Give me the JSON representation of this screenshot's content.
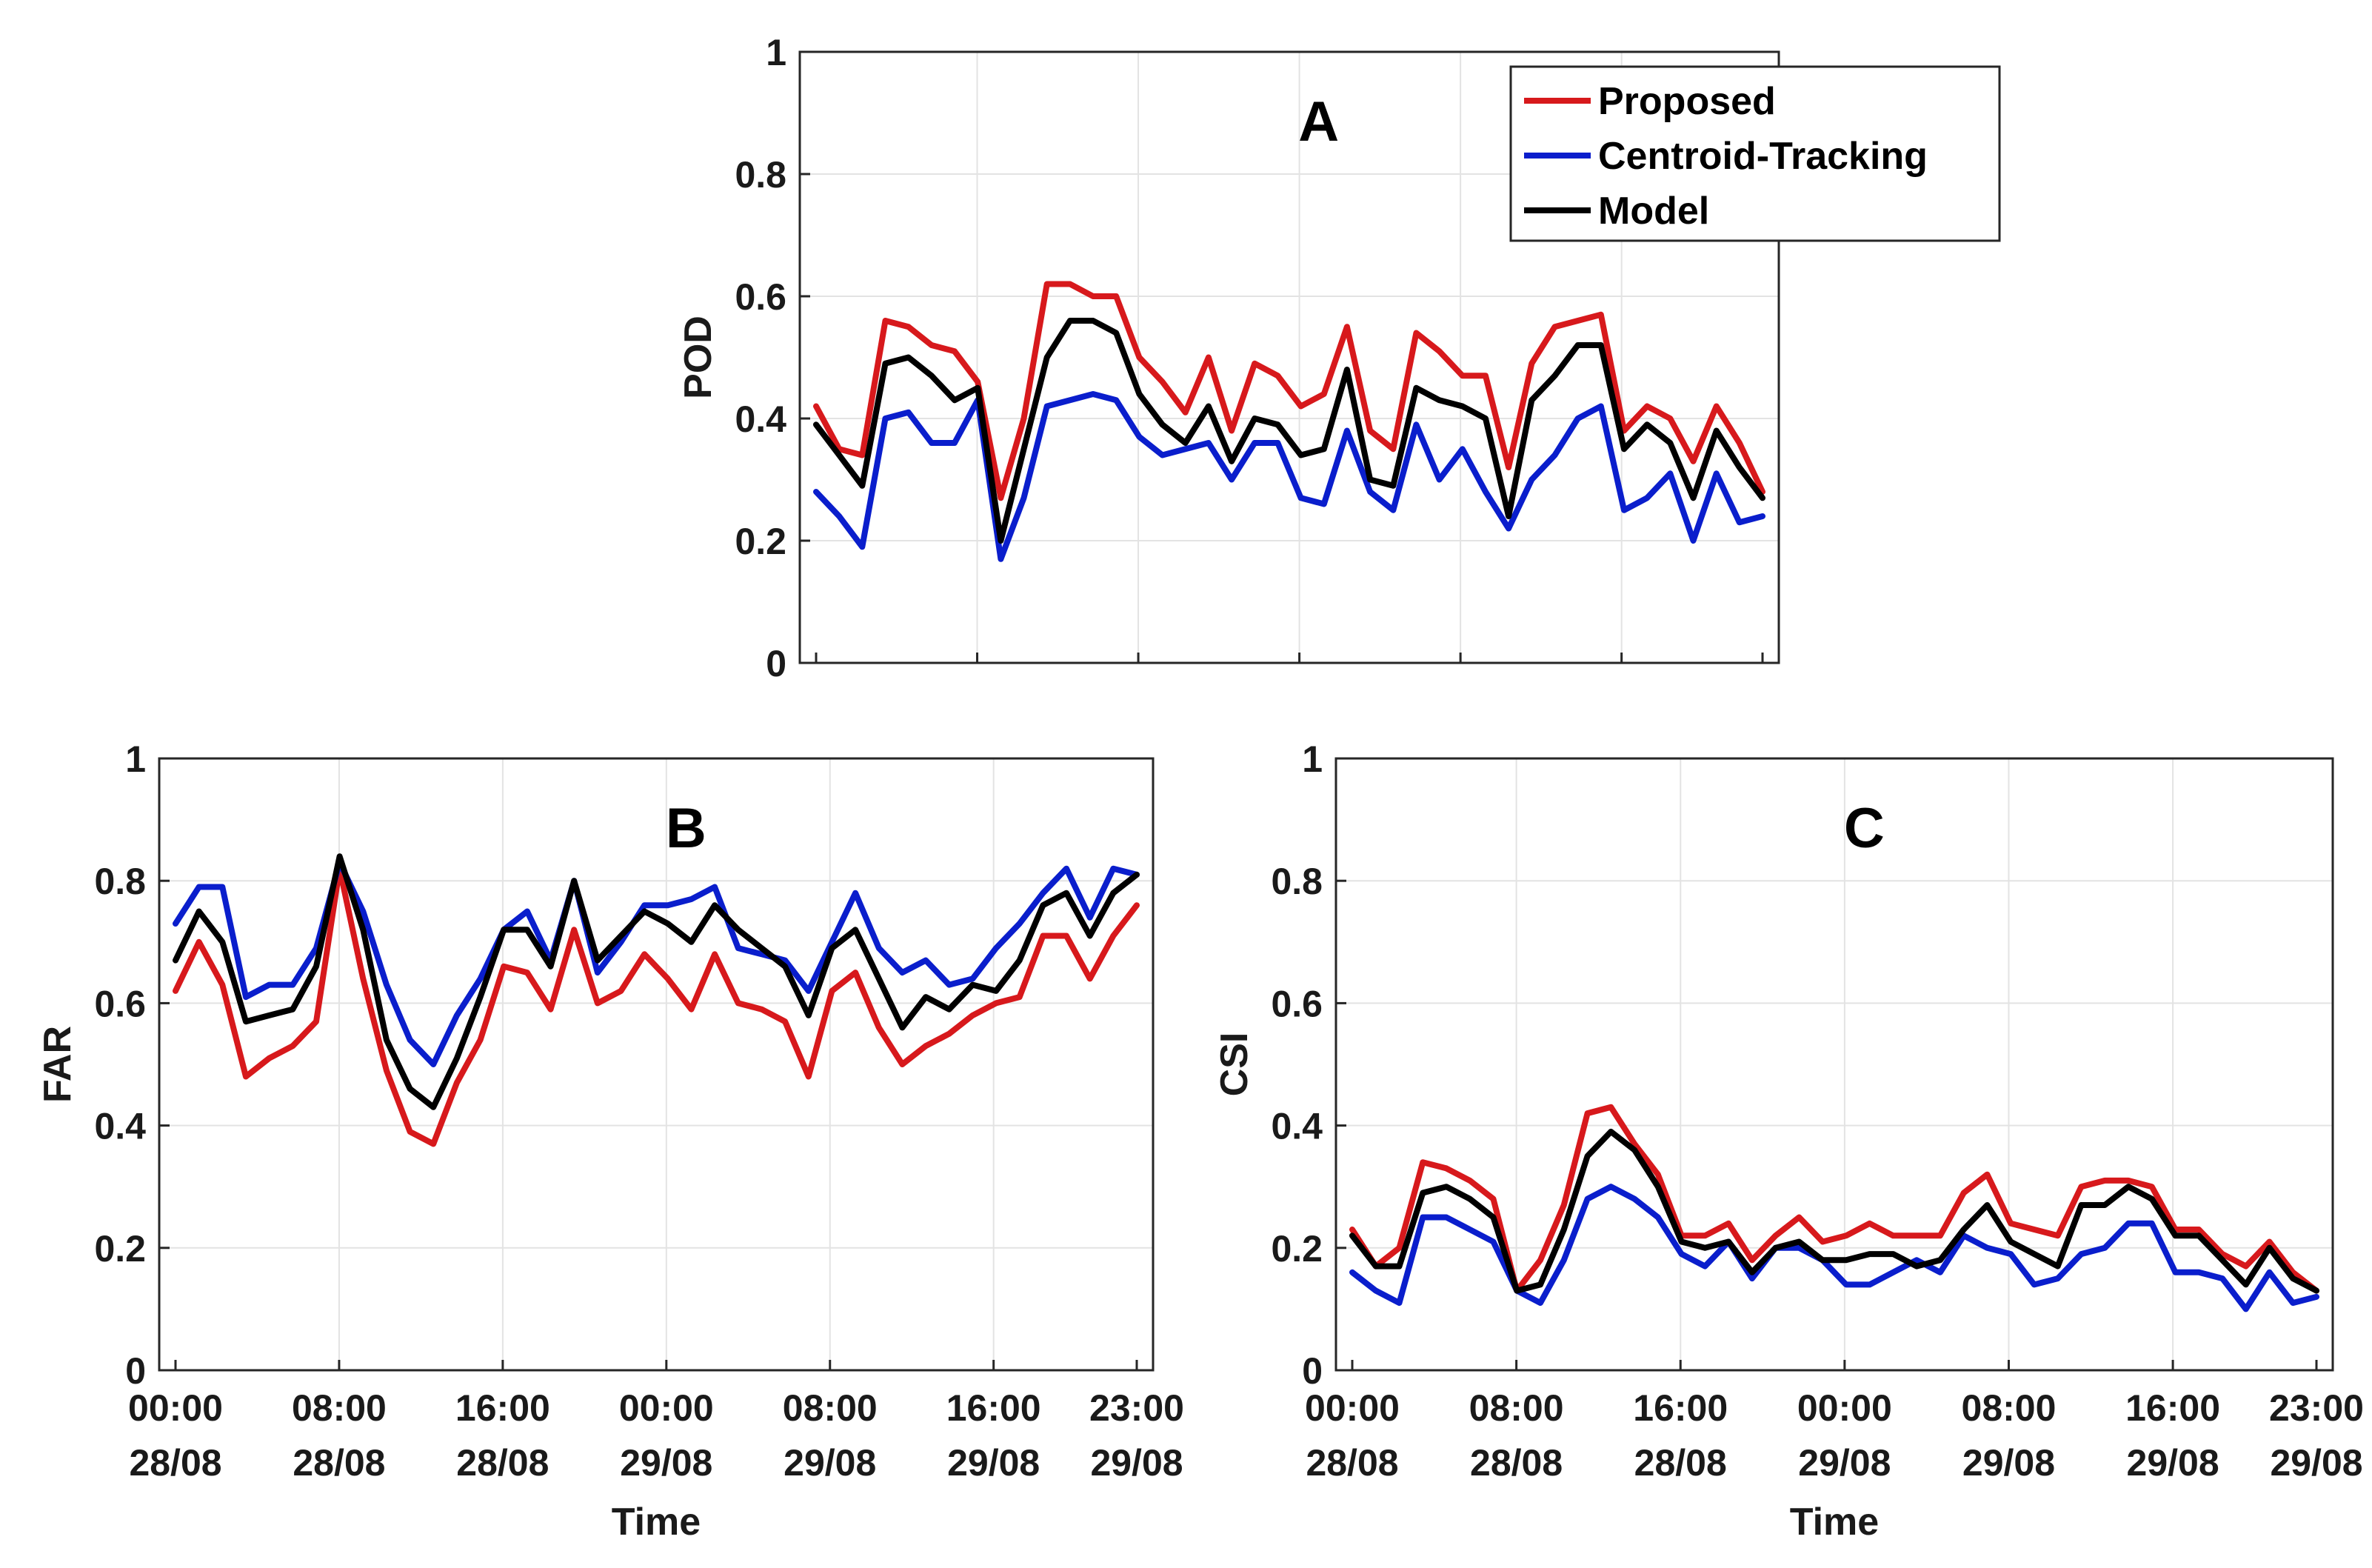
{
  "chart_data": [
    {
      "type": "line",
      "title": "A",
      "xlabel": "",
      "ylabel": "POD",
      "ylim": [
        0,
        1
      ],
      "yticks": [
        "0",
        "0.2",
        "0.4",
        "0.6",
        "0.8",
        "1"
      ],
      "xticks": [],
      "grid": true,
      "legend": {
        "placement": "top-right",
        "entries": [
          "Proposed",
          "Centroid-Tracking",
          "Model"
        ]
      },
      "series": [
        {
          "name": "Proposed",
          "color": "#d7191c",
          "values": [
            0.42,
            0.35,
            0.34,
            0.56,
            0.55,
            0.52,
            0.51,
            0.46,
            0.27,
            0.4,
            0.62,
            0.62,
            0.6,
            0.6,
            0.5,
            0.46,
            0.41,
            0.5,
            0.38,
            0.49,
            0.47,
            0.42,
            0.44,
            0.55,
            0.38,
            0.35,
            0.54,
            0.51,
            0.47,
            0.47,
            0.32,
            0.49,
            0.55,
            0.56,
            0.57,
            0.38,
            0.42,
            0.4,
            0.33,
            0.42,
            0.36,
            0.28
          ]
        },
        {
          "name": "Centroid-Tracking",
          "color": "#0a1ecc",
          "values": [
            0.28,
            0.24,
            0.19,
            0.4,
            0.41,
            0.36,
            0.36,
            0.43,
            0.17,
            0.27,
            0.42,
            0.43,
            0.44,
            0.43,
            0.37,
            0.34,
            0.35,
            0.36,
            0.3,
            0.36,
            0.36,
            0.27,
            0.26,
            0.38,
            0.28,
            0.25,
            0.39,
            0.3,
            0.35,
            0.28,
            0.22,
            0.3,
            0.34,
            0.4,
            0.42,
            0.25,
            0.27,
            0.31,
            0.2,
            0.31,
            0.23,
            0.24
          ]
        },
        {
          "name": "Model",
          "color": "#000000",
          "values": [
            0.39,
            0.34,
            0.29,
            0.49,
            0.5,
            0.47,
            0.43,
            0.45,
            0.2,
            0.35,
            0.5,
            0.56,
            0.56,
            0.54,
            0.44,
            0.39,
            0.36,
            0.42,
            0.33,
            0.4,
            0.39,
            0.34,
            0.35,
            0.48,
            0.3,
            0.29,
            0.45,
            0.43,
            0.42,
            0.4,
            0.24,
            0.43,
            0.47,
            0.52,
            0.52,
            0.35,
            0.39,
            0.36,
            0.27,
            0.38,
            0.32,
            0.27
          ]
        }
      ]
    },
    {
      "type": "line",
      "title": "B",
      "xlabel": "Time",
      "ylabel": "FAR",
      "ylim": [
        0,
        1
      ],
      "yticks": [
        "0",
        "0.2",
        "0.4",
        "0.6",
        "0.8",
        "1"
      ],
      "xticks": [
        "00:00|28/08",
        "08:00|28/08",
        "16:00|28/08",
        "00:00|29/08",
        "08:00|29/08",
        "16:00|29/08",
        "23:00|29/08"
      ],
      "grid": true,
      "series": [
        {
          "name": "Proposed",
          "color": "#d7191c",
          "values": [
            0.62,
            0.7,
            0.63,
            0.48,
            0.51,
            0.53,
            0.57,
            0.82,
            0.64,
            0.49,
            0.39,
            0.37,
            0.47,
            0.54,
            0.66,
            0.65,
            0.59,
            0.72,
            0.6,
            0.62,
            0.68,
            0.64,
            0.59,
            0.68,
            0.6,
            0.59,
            0.57,
            0.48,
            0.62,
            0.65,
            0.56,
            0.5,
            0.53,
            0.55,
            0.58,
            0.6,
            0.61,
            0.71,
            0.71,
            0.64,
            0.71,
            0.76
          ]
        },
        {
          "name": "Centroid-Tracking",
          "color": "#0a1ecc",
          "values": [
            0.73,
            0.79,
            0.79,
            0.61,
            0.63,
            0.63,
            0.69,
            0.83,
            0.75,
            0.63,
            0.54,
            0.5,
            0.58,
            0.64,
            0.72,
            0.75,
            0.67,
            0.8,
            0.65,
            0.7,
            0.76,
            0.76,
            0.77,
            0.79,
            0.69,
            0.68,
            0.67,
            0.62,
            0.7,
            0.78,
            0.69,
            0.65,
            0.67,
            0.63,
            0.64,
            0.69,
            0.73,
            0.78,
            0.82,
            0.74,
            0.82,
            0.81
          ]
        },
        {
          "name": "Model",
          "color": "#000000",
          "values": [
            0.67,
            0.75,
            0.7,
            0.57,
            0.58,
            0.59,
            0.66,
            0.84,
            0.72,
            0.54,
            0.46,
            0.43,
            0.51,
            0.61,
            0.72,
            0.72,
            0.66,
            0.8,
            0.67,
            0.71,
            0.75,
            0.73,
            0.7,
            0.76,
            0.72,
            0.69,
            0.66,
            0.58,
            0.69,
            0.72,
            0.64,
            0.56,
            0.61,
            0.59,
            0.63,
            0.62,
            0.67,
            0.76,
            0.78,
            0.71,
            0.78,
            0.81
          ]
        }
      ]
    },
    {
      "type": "line",
      "title": "C",
      "xlabel": "Time",
      "ylabel": "CSI",
      "ylim": [
        0,
        1
      ],
      "yticks": [
        "0",
        "0.2",
        "0.4",
        "0.6",
        "0.8",
        "1"
      ],
      "xticks": [
        "00:00|28/08",
        "08:00|28/08",
        "16:00|28/08",
        "00:00|29/08",
        "08:00|29/08",
        "16:00|29/08",
        "23:00|29/08"
      ],
      "grid": true,
      "series": [
        {
          "name": "Proposed",
          "color": "#d7191c",
          "values": [
            0.23,
            0.17,
            0.2,
            0.34,
            0.33,
            0.31,
            0.28,
            0.13,
            0.18,
            0.27,
            0.42,
            0.43,
            0.37,
            0.32,
            0.22,
            0.22,
            0.24,
            0.18,
            0.22,
            0.25,
            0.21,
            0.22,
            0.24,
            0.22,
            0.22,
            0.22,
            0.29,
            0.32,
            0.24,
            0.23,
            0.22,
            0.3,
            0.31,
            0.31,
            0.3,
            0.23,
            0.23,
            0.19,
            0.17,
            0.21,
            0.16,
            0.13
          ]
        },
        {
          "name": "Centroid-Tracking",
          "color": "#0a1ecc",
          "values": [
            0.16,
            0.13,
            0.11,
            0.25,
            0.25,
            0.23,
            0.21,
            0.13,
            0.11,
            0.18,
            0.28,
            0.3,
            0.28,
            0.25,
            0.19,
            0.17,
            0.21,
            0.15,
            0.2,
            0.2,
            0.18,
            0.14,
            0.14,
            0.16,
            0.18,
            0.16,
            0.22,
            0.2,
            0.19,
            0.14,
            0.15,
            0.19,
            0.2,
            0.24,
            0.24,
            0.16,
            0.16,
            0.15,
            0.1,
            0.16,
            0.11,
            0.12
          ]
        },
        {
          "name": "Model",
          "color": "#000000",
          "values": [
            0.22,
            0.17,
            0.17,
            0.29,
            0.3,
            0.28,
            0.25,
            0.13,
            0.14,
            0.23,
            0.35,
            0.39,
            0.36,
            0.3,
            0.21,
            0.2,
            0.21,
            0.16,
            0.2,
            0.21,
            0.18,
            0.18,
            0.19,
            0.19,
            0.17,
            0.18,
            0.23,
            0.27,
            0.21,
            0.19,
            0.17,
            0.27,
            0.27,
            0.3,
            0.28,
            0.22,
            0.22,
            0.18,
            0.14,
            0.2,
            0.15,
            0.13
          ]
        }
      ]
    }
  ]
}
